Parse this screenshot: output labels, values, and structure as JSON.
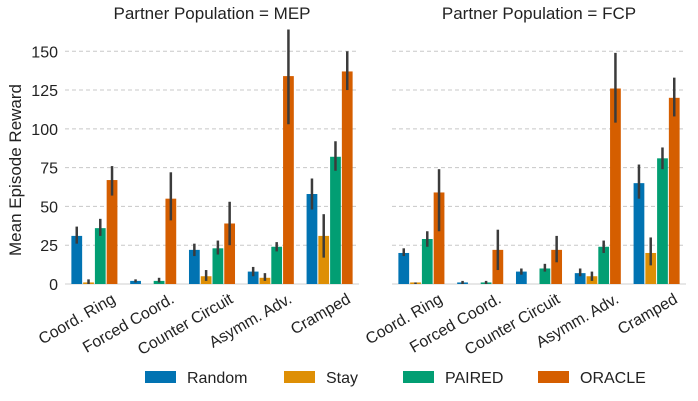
{
  "chart_data": [
    {
      "type": "bar",
      "title": "Partner Population = MEP",
      "xlabel": "",
      "ylabel": "Mean Episode Reward",
      "ylim": [
        0,
        165
      ],
      "yticks": [
        0,
        25,
        50,
        75,
        100,
        125,
        150
      ],
      "grid": true,
      "categories": [
        "Coord. Ring",
        "Forced Coord.",
        "Counter Circuit",
        "Asymm. Adv.",
        "Cramped"
      ],
      "series": [
        {
          "name": "Random",
          "values": [
            31,
            2,
            22,
            8,
            58
          ],
          "err_low": [
            26,
            1,
            18,
            5,
            48
          ],
          "err_high": [
            37,
            3,
            26,
            11,
            68
          ]
        },
        {
          "name": "Stay",
          "values": [
            1,
            0,
            5,
            4,
            31
          ],
          "err_low": [
            0,
            0,
            2,
            2,
            17
          ],
          "err_high": [
            3,
            0,
            9,
            7,
            45
          ]
        },
        {
          "name": "PAIRED",
          "values": [
            36,
            2,
            23,
            24,
            82
          ],
          "err_low": [
            31,
            1,
            19,
            21,
            73
          ],
          "err_high": [
            42,
            4,
            28,
            27,
            92
          ]
        },
        {
          "name": "ORACLE",
          "values": [
            67,
            55,
            39,
            134,
            137
          ],
          "err_low": [
            57,
            41,
            25,
            103,
            125
          ],
          "err_high": [
            76,
            72,
            53,
            164,
            150
          ]
        }
      ]
    },
    {
      "type": "bar",
      "title": "Partner Population = FCP",
      "xlabel": "",
      "ylabel": "",
      "ylim": [
        0,
        165
      ],
      "yticks": [
        0,
        25,
        50,
        75,
        100,
        125,
        150
      ],
      "grid": true,
      "categories": [
        "Coord. Ring",
        "Forced Coord.",
        "Counter Circuit",
        "Asymm. Adv.",
        "Cramped"
      ],
      "series": [
        {
          "name": "Random",
          "values": [
            20,
            1,
            8,
            7,
            65
          ],
          "err_low": [
            18,
            0,
            6,
            5,
            55
          ],
          "err_high": [
            23,
            2,
            10,
            10,
            77
          ]
        },
        {
          "name": "Stay",
          "values": [
            1,
            0,
            0,
            5,
            20
          ],
          "err_low": [
            0,
            0,
            0,
            2,
            12
          ],
          "err_high": [
            1,
            0,
            0,
            8,
            30
          ]
        },
        {
          "name": "PAIRED",
          "values": [
            29,
            1,
            10,
            24,
            81
          ],
          "err_low": [
            24,
            0,
            8,
            20,
            74
          ],
          "err_high": [
            34,
            2,
            13,
            28,
            88
          ]
        },
        {
          "name": "ORACLE",
          "values": [
            59,
            22,
            22,
            126,
            120
          ],
          "err_low": [
            34,
            9,
            14,
            104,
            108
          ],
          "err_high": [
            74,
            35,
            31,
            149,
            133
          ]
        }
      ]
    }
  ],
  "legend": {
    "placement": "bottom",
    "entries": [
      "Random",
      "Stay",
      "PAIRED",
      "ORACLE"
    ]
  },
  "colors": {
    "Random": "#0173b2",
    "Stay": "#de8f05",
    "PAIRED": "#029e73",
    "ORACLE": "#d55e00",
    "errorbar": "#3b3b3b",
    "grid": "#c8c8c8",
    "axis": "#cfcfcf"
  }
}
